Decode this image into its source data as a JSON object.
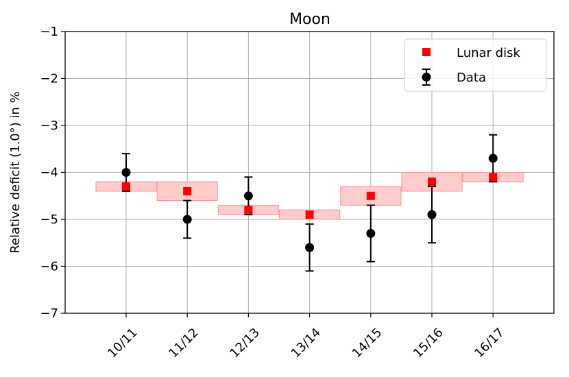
{
  "chart_data": {
    "type": "scatter",
    "title": "Moon",
    "xlabel": "",
    "ylabel": "Relative deficit (1.0°) in %",
    "categories": [
      "10/11",
      "11/12",
      "12/13",
      "13/14",
      "14/15",
      "15/16",
      "16/17"
    ],
    "ylim": [
      -7,
      -1
    ],
    "yticks": [
      -1,
      -2,
      -3,
      -4,
      -5,
      -6,
      -7
    ],
    "ytick_labels": [
      "−1",
      "−2",
      "−3",
      "−4",
      "−5",
      "−6",
      "−7"
    ],
    "grid": true,
    "legend_position": "top-right",
    "series": [
      {
        "name": "Lunar disk",
        "marker": "square",
        "color": "#ff0000",
        "values": [
          -4.3,
          -4.4,
          -4.8,
          -4.9,
          -4.5,
          -4.2,
          -4.1
        ],
        "band_low": [
          -4.4,
          -4.6,
          -4.9,
          -5.0,
          -4.7,
          -4.4,
          -4.2
        ],
        "band_high": [
          -4.2,
          -4.2,
          -4.7,
          -4.8,
          -4.3,
          -4.0,
          -4.0
        ],
        "band_color": "#ffcccc",
        "band_edge_color": "#ff9999"
      },
      {
        "name": "Data",
        "marker": "circle",
        "color": "#000000",
        "values": [
          -4.0,
          -5.0,
          -4.5,
          -5.6,
          -5.3,
          -4.9,
          -3.7
        ],
        "error": [
          0.4,
          0.4,
          0.4,
          0.5,
          0.6,
          0.6,
          0.5
        ]
      }
    ]
  }
}
